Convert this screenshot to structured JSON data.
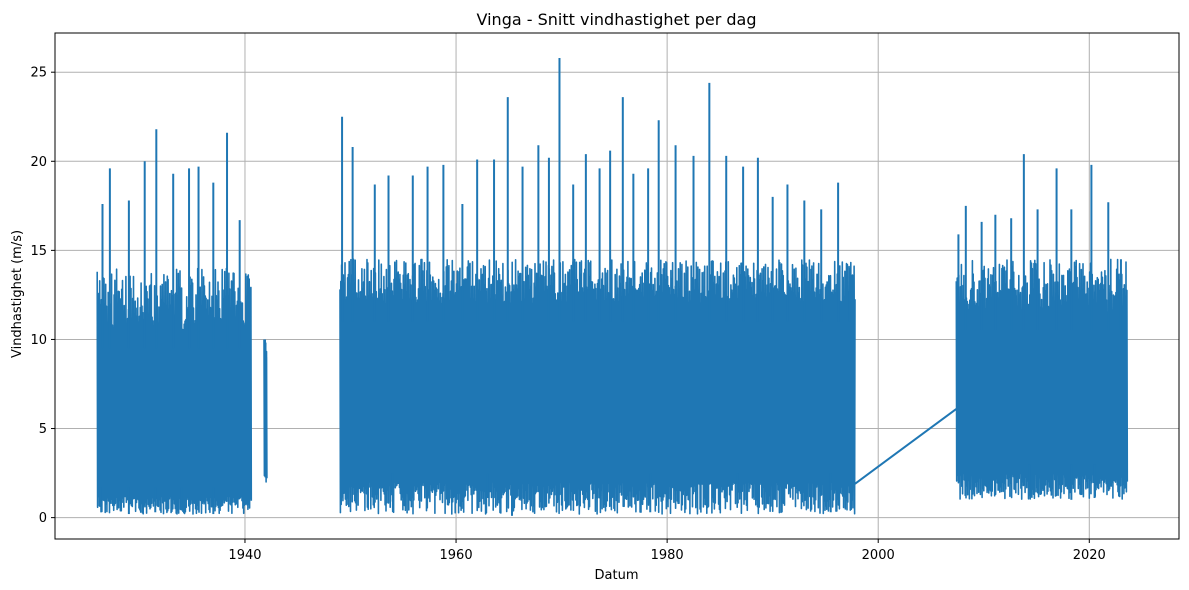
{
  "chart_data": {
    "type": "line",
    "title": "Vinga - Snitt vindhastighet per dag",
    "xlabel": "Datum",
    "ylabel": "Vindhastighet (m/s)",
    "xlim": [
      1922.0,
      2028.5
    ],
    "ylim": [
      -1.2,
      27.2
    ],
    "x_ticks": [
      1940,
      1960,
      1980,
      2000,
      2020
    ],
    "y_ticks": [
      0,
      5,
      10,
      15,
      20,
      25
    ],
    "grid": true,
    "color": "#1f77b4",
    "series": [
      {
        "segments": [
          {
            "start": 1926.0,
            "end": 1940.6,
            "low": 0.2,
            "high": 14.0,
            "typical_low": 1.2,
            "typical_high": 10.5
          },
          {
            "start": 1941.8,
            "end": 1942.1,
            "low": 2.0,
            "high": 10.0,
            "typical_low": 2.5,
            "typical_high": 9.0
          },
          {
            "start": 1949.0,
            "end": 1997.8,
            "low": 0.2,
            "high": 14.5,
            "typical_low": 2.0,
            "typical_high": 12.0
          },
          {
            "start": 2007.4,
            "end": 2023.6,
            "low": 1.0,
            "high": 14.5,
            "typical_low": 2.5,
            "typical_high": 11.5
          }
        ],
        "gap_connector": [
          [
            1997.8,
            1.9
          ],
          [
            2007.4,
            6.1
          ]
        ],
        "peaks": [
          [
            1926.5,
            17.6
          ],
          [
            1927.2,
            19.6
          ],
          [
            1929.0,
            17.8
          ],
          [
            1930.5,
            20.0
          ],
          [
            1931.6,
            21.8
          ],
          [
            1933.2,
            19.3
          ],
          [
            1934.7,
            19.6
          ],
          [
            1935.6,
            19.7
          ],
          [
            1937.0,
            18.8
          ],
          [
            1938.3,
            21.6
          ],
          [
            1939.5,
            16.7
          ],
          [
            1941.9,
            10.0
          ],
          [
            1949.2,
            22.5
          ],
          [
            1950.2,
            20.8
          ],
          [
            1952.3,
            18.7
          ],
          [
            1953.6,
            19.2
          ],
          [
            1955.9,
            19.2
          ],
          [
            1957.3,
            19.7
          ],
          [
            1958.8,
            19.8
          ],
          [
            1960.6,
            17.6
          ],
          [
            1962.0,
            20.1
          ],
          [
            1963.6,
            20.1
          ],
          [
            1964.9,
            23.6
          ],
          [
            1966.3,
            19.7
          ],
          [
            1967.8,
            20.9
          ],
          [
            1968.8,
            20.2
          ],
          [
            1969.8,
            25.8
          ],
          [
            1971.1,
            18.7
          ],
          [
            1972.3,
            20.4
          ],
          [
            1973.6,
            19.6
          ],
          [
            1974.6,
            20.6
          ],
          [
            1975.8,
            23.6
          ],
          [
            1976.8,
            19.3
          ],
          [
            1978.2,
            19.6
          ],
          [
            1979.2,
            22.3
          ],
          [
            1980.8,
            20.9
          ],
          [
            1982.5,
            20.3
          ],
          [
            1984.0,
            24.4
          ],
          [
            1985.6,
            20.3
          ],
          [
            1987.2,
            19.7
          ],
          [
            1988.6,
            20.2
          ],
          [
            1990.0,
            18.0
          ],
          [
            1991.4,
            18.7
          ],
          [
            1993.0,
            17.8
          ],
          [
            1994.6,
            17.3
          ],
          [
            1996.2,
            18.8
          ],
          [
            1997.3,
            14.0
          ],
          [
            2007.6,
            15.9
          ],
          [
            2008.3,
            17.5
          ],
          [
            2009.8,
            16.6
          ],
          [
            2011.1,
            17.0
          ],
          [
            2012.6,
            16.8
          ],
          [
            2013.8,
            20.4
          ],
          [
            2015.1,
            17.3
          ],
          [
            2016.9,
            19.6
          ],
          [
            2018.3,
            17.3
          ],
          [
            2020.2,
            19.8
          ],
          [
            2021.8,
            17.7
          ],
          [
            2023.0,
            14.5
          ]
        ],
        "troughs": [
          [
            1926.3,
            0.6
          ],
          [
            1929.0,
            0.2
          ],
          [
            1931.5,
            0.3
          ],
          [
            1934.0,
            0.4
          ],
          [
            1937.0,
            0.2
          ],
          [
            1954.0,
            0.9
          ],
          [
            1963.0,
            1.1
          ],
          [
            1965.3,
            0.1
          ],
          [
            1978.4,
            0.3
          ],
          [
            1986.7,
            0.8
          ],
          [
            1995.5,
            0.3
          ],
          [
            2014.3,
            1.2
          ],
          [
            2018.3,
            1.0
          ],
          [
            2020.5,
            1.1
          ]
        ]
      }
    ]
  }
}
